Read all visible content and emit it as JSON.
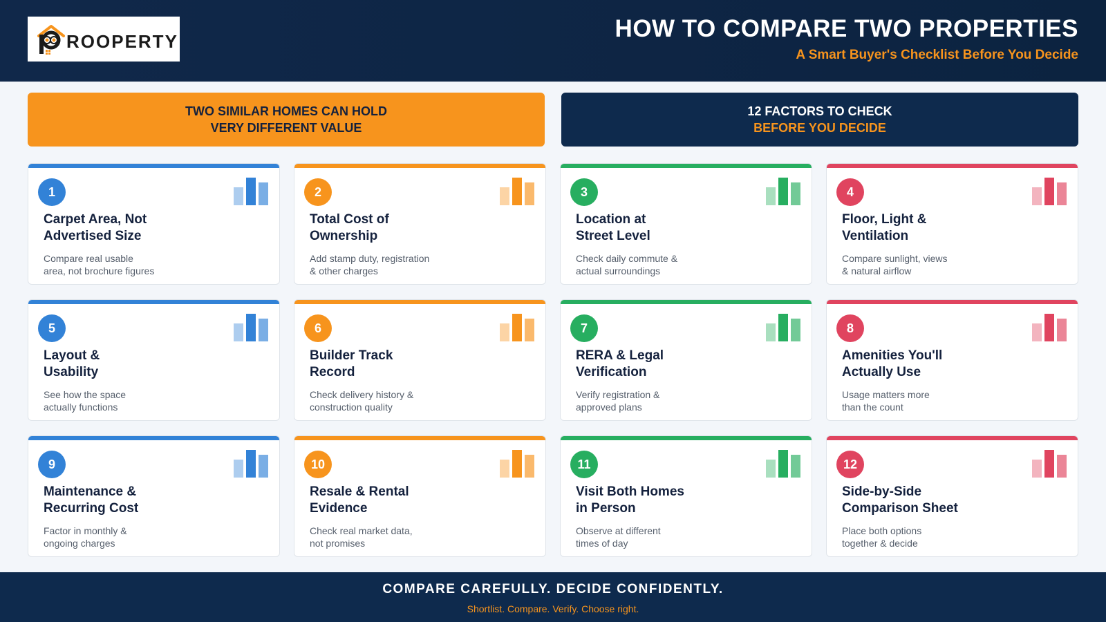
{
  "header": {
    "logo_text": "ROOPERTY",
    "logo_letter": "P",
    "title": "HOW TO COMPARE TWO PROPERTIES",
    "subtitle": "A Smart Buyer's Checklist Before You Decide"
  },
  "banners": {
    "left": {
      "line1": "TWO SIMILAR HOMES CAN HOLD",
      "line2": "VERY DIFFERENT VALUE"
    },
    "right": {
      "line1": "12 FACTORS TO CHECK",
      "line2": "BEFORE YOU DECIDE"
    }
  },
  "colors": {
    "blue": "#3282d7",
    "orange": "#f7941d",
    "green": "#27ae60",
    "red": "#e0445f",
    "navy": "#0e2a4d"
  },
  "cards": [
    {
      "number": "1",
      "color": "#3282d7",
      "title1": "Carpet Area, Not",
      "title2": "Advertised Size",
      "desc1": "Compare real usable",
      "desc2": "area, not brochure figures"
    },
    {
      "number": "2",
      "color": "#f7941d",
      "title1": "Total Cost of",
      "title2": "Ownership",
      "desc1": "Add stamp duty, registration",
      "desc2": "& other charges"
    },
    {
      "number": "3",
      "color": "#27ae60",
      "title1": "Location at",
      "title2": "Street Level",
      "desc1": "Check daily commute &",
      "desc2": "actual surroundings"
    },
    {
      "number": "4",
      "color": "#e0445f",
      "title1": "Floor, Light &",
      "title2": "Ventilation",
      "desc1": "Compare sunlight, views",
      "desc2": "& natural airflow"
    },
    {
      "number": "5",
      "color": "#3282d7",
      "title1": "Layout &",
      "title2": "Usability",
      "desc1": "See how the space",
      "desc2": "actually functions"
    },
    {
      "number": "6",
      "color": "#f7941d",
      "title1": "Builder Track",
      "title2": "Record",
      "desc1": "Check delivery history &",
      "desc2": "construction quality"
    },
    {
      "number": "7",
      "color": "#27ae60",
      "title1": "RERA & Legal",
      "title2": "Verification",
      "desc1": "Verify registration &",
      "desc2": "approved plans"
    },
    {
      "number": "8",
      "color": "#e0445f",
      "title1": "Amenities You'll",
      "title2": "Actually Use",
      "desc1": "Usage matters more",
      "desc2": "than the count"
    },
    {
      "number": "9",
      "color": "#3282d7",
      "title1": "Maintenance &",
      "title2": "Recurring Cost",
      "desc1": "Factor in monthly &",
      "desc2": "ongoing charges"
    },
    {
      "number": "10",
      "color": "#f7941d",
      "title1": "Resale & Rental",
      "title2": "Evidence",
      "desc1": "Check real market data,",
      "desc2": "not promises"
    },
    {
      "number": "11",
      "color": "#27ae60",
      "title1": "Visit Both Homes",
      "title2": "in Person",
      "desc1": "Observe at different",
      "desc2": "times of day"
    },
    {
      "number": "12",
      "color": "#e0445f",
      "title1": "Side-by-Side",
      "title2": "Comparison Sheet",
      "desc1": "Place both options",
      "desc2": "together & decide"
    }
  ],
  "footer": {
    "title": "COMPARE CAREFULLY. DECIDE CONFIDENTLY.",
    "subtitle": "Shortlist. Compare. Verify. Choose right."
  }
}
